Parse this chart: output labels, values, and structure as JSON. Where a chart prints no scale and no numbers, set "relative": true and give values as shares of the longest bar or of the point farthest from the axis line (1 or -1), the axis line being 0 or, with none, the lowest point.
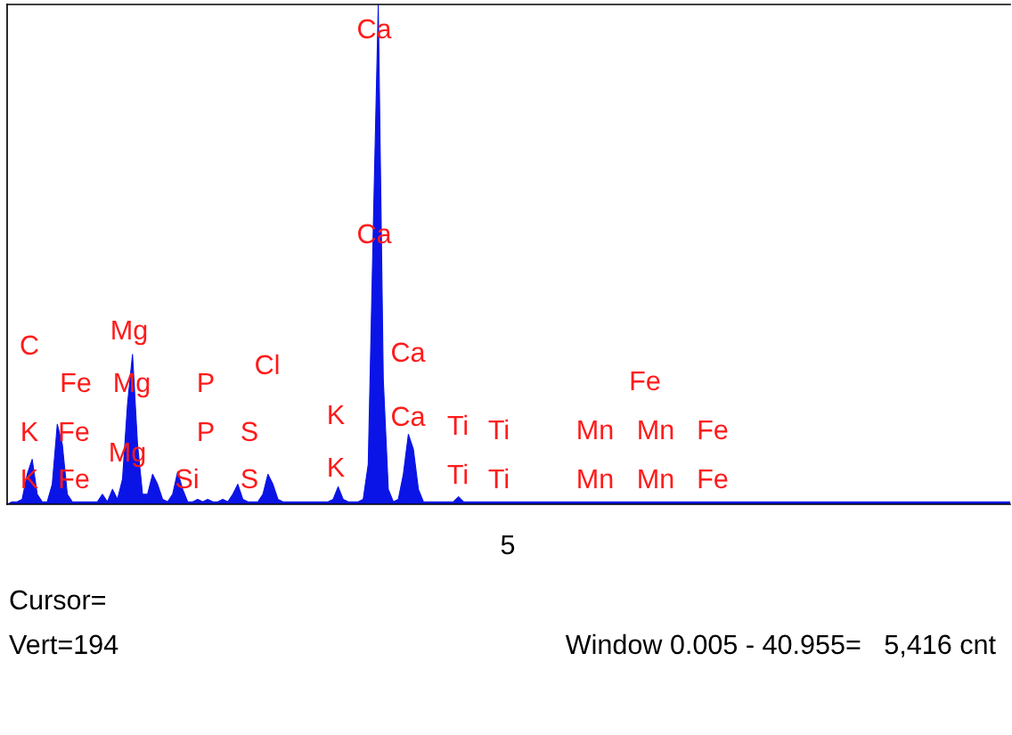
{
  "chart_data": {
    "type": "area",
    "relative": true,
    "color": "#0a14e6",
    "categories": [
      null,
      null,
      null,
      null,
      null,
      null,
      null,
      null,
      null,
      null,
      null,
      null,
      null,
      null,
      null,
      null,
      null,
      null,
      null,
      null,
      null,
      null,
      null,
      null,
      null,
      null,
      null,
      null,
      null,
      null,
      null,
      null,
      null,
      null,
      null,
      null,
      null,
      null,
      null,
      null,
      null,
      null,
      null,
      null,
      null,
      null,
      null,
      null,
      null,
      null,
      null,
      null,
      null,
      null,
      null,
      null,
      null,
      null,
      null,
      null,
      null,
      null,
      null,
      null,
      null,
      null,
      null,
      null,
      null,
      null,
      null,
      null,
      null,
      null,
      null,
      null,
      null,
      null,
      null,
      null,
      null,
      null,
      null,
      null,
      null,
      null,
      null,
      null,
      null,
      null,
      null,
      null,
      null,
      null,
      null,
      null,
      null,
      null,
      null,
      null,
      null,
      null,
      null,
      null,
      null,
      null,
      null,
      null,
      null,
      null,
      null,
      null,
      null,
      null,
      null,
      null,
      null,
      null,
      null,
      null,
      null,
      null,
      null,
      null,
      null,
      null,
      null,
      null,
      null,
      null,
      null,
      null,
      null,
      null,
      null,
      null,
      null,
      null,
      null,
      null,
      null,
      null,
      null,
      null,
      null,
      null,
      null,
      null,
      null,
      null,
      null,
      null,
      null,
      null,
      null,
      null,
      null,
      null,
      null,
      null,
      null,
      null,
      null,
      null,
      null,
      null,
      null,
      null,
      null,
      null,
      null,
      null,
      null,
      null,
      null,
      null,
      null,
      null,
      null,
      null,
      null,
      null,
      null,
      null,
      null,
      null,
      null,
      null,
      null,
      null,
      null,
      null,
      null,
      null,
      null,
      null,
      null,
      null,
      null,
      null,
      null
    ],
    "values": [
      0,
      0.005,
      0.005,
      0.01,
      0.06,
      0.09,
      0.02,
      0.005,
      0.005,
      0.04,
      0.16,
      0.12,
      0.02,
      0.005,
      0.005,
      0.005,
      0.005,
      0.005,
      0.005,
      0.02,
      0.005,
      0.03,
      0.01,
      0.05,
      0.2,
      0.3,
      0.12,
      0.02,
      0.02,
      0.06,
      0.04,
      0.01,
      0.005,
      0.02,
      0.065,
      0.03,
      0.005,
      0.005,
      0.01,
      0.005,
      0.01,
      0.005,
      0.005,
      0.01,
      0.005,
      0.02,
      0.04,
      0.01,
      0.005,
      0.005,
      0.005,
      0.02,
      0.06,
      0.04,
      0.01,
      0.005,
      0.005,
      0.005,
      0.005,
      0.005,
      0.005,
      0.005,
      0.005,
      0.005,
      0.005,
      0.01,
      0.035,
      0.01,
      0.005,
      0.005,
      0.005,
      0.01,
      0.08,
      0.55,
      1.0,
      0.25,
      0.03,
      0.005,
      0.01,
      0.06,
      0.14,
      0.11,
      0.03,
      0.005,
      0.005,
      0.005,
      0.005,
      0.005,
      0.005,
      0.005,
      0.015,
      0.005,
      0.005,
      0.005,
      0.005,
      0.005,
      0.005,
      0.005,
      0.005,
      0.005,
      0.005,
      0.005,
      0.005,
      0.005,
      0.005,
      0.005,
      0.005,
      0.005,
      0.005,
      0.005,
      0.005,
      0.005,
      0.005,
      0.005,
      0.005,
      0.005,
      0.005,
      0.005,
      0.005,
      0.005,
      0.005,
      0.005,
      0.005,
      0.005,
      0.005,
      0.005,
      0.005,
      0.005,
      0.005,
      0.005,
      0.005,
      0.005,
      0.005,
      0.005,
      0.005,
      0.005,
      0.005,
      0.005,
      0.005,
      0.005,
      0.005,
      0.005,
      0.005,
      0.005,
      0.005,
      0.005,
      0.005,
      0.005,
      0.005,
      0.005,
      0.005,
      0.005,
      0.005,
      0.005,
      0.005,
      0.005,
      0.005,
      0.005,
      0.005,
      0.005,
      0.005,
      0.005,
      0.005,
      0.005,
      0.005,
      0.005,
      0.005,
      0.005,
      0.005,
      0.005,
      0.005,
      0.005,
      0.005,
      0.005,
      0.005,
      0.005,
      0.005,
      0.005,
      0.005,
      0.005,
      0.005,
      0.005,
      0.005,
      0.005,
      0.005,
      0.005,
      0.005,
      0.005,
      0.005,
      0.005,
      0.005,
      0.005,
      0.005,
      0.005,
      0.005,
      0.005,
      0.005,
      0.005,
      0.005,
      0.005,
      0.005
    ],
    "annotations": [
      "5",
      "C",
      "K",
      "K",
      "Fe",
      "Fe",
      "Fe",
      "Mg",
      "Mg",
      "Mg",
      "Si",
      "P",
      "P",
      "Cl",
      "S",
      "S",
      "K",
      "K",
      "Ca",
      "Ca",
      "Ca",
      "Ca",
      "Ti",
      "Ti",
      "Ti",
      "Ti",
      "Fe",
      "Mn",
      "Mn",
      "Mn",
      "Mn",
      "Fe",
      "Fe",
      "Cursor=",
      "Vert=194",
      "Window 0.005 - 40.955=   5,416 cnt"
    ]
  }
}
